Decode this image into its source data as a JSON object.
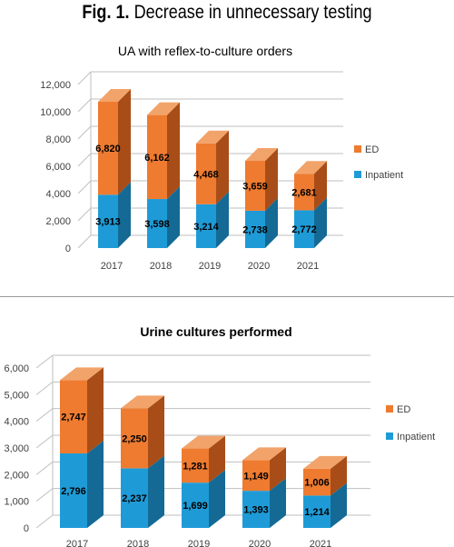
{
  "figure": {
    "prefix": "Fig. 1.",
    "title": "Decrease in unnecessary testing"
  },
  "colors": {
    "inpatient": "#1e9bd7",
    "inpatient_side": "#146a95",
    "inpatient_top": "#6cc0ea",
    "ed": "#ee7b30",
    "ed_side": "#a84d18",
    "ed_top": "#f2a36a",
    "grid": "#bfbfbf",
    "axis_text": "#404040"
  },
  "chart_data": [
    {
      "type": "bar",
      "stacked": true,
      "three_d": true,
      "title": "UA with reflex-to-culture orders",
      "categories": [
        "2017",
        "2018",
        "2019",
        "2020",
        "2021"
      ],
      "series": [
        {
          "name": "Inpatient",
          "values": [
            3913,
            3598,
            3214,
            2738,
            2772
          ],
          "labels": [
            "3,913",
            "3,598",
            "3,214",
            "2,738",
            "2,772"
          ]
        },
        {
          "name": "ED",
          "values": [
            6820,
            6162,
            4468,
            3659,
            2681
          ],
          "labels": [
            "6,820",
            "6,162",
            "4,468",
            "3,659",
            "2,681"
          ]
        }
      ],
      "ylim": [
        0,
        12000
      ],
      "yticks": [
        "0",
        "2,000",
        "4,000",
        "6,000",
        "8,000",
        "10,000",
        "12,000"
      ],
      "legend": [
        "ED",
        "Inpatient"
      ],
      "legend_position": "right",
      "grid": true
    },
    {
      "type": "bar",
      "stacked": true,
      "three_d": true,
      "title": "Urine cultures performed",
      "categories": [
        "2017",
        "2018",
        "2019",
        "2020",
        "2021"
      ],
      "series": [
        {
          "name": "Inpatient",
          "values": [
            2796,
            2237,
            1699,
            1393,
            1214
          ],
          "labels": [
            "2,796",
            "2,237",
            "1,699",
            "1,393",
            "1,214"
          ]
        },
        {
          "name": "ED",
          "values": [
            2747,
            2250,
            1281,
            1149,
            1006
          ],
          "labels": [
            "2,747",
            "2,250",
            "1,281",
            "1,149",
            "1,006"
          ]
        }
      ],
      "ylim": [
        0,
        6000
      ],
      "yticks": [
        "0",
        "1,000",
        "2,000",
        "3,000",
        "4,000",
        "5,000",
        "6,000"
      ],
      "legend": [
        "ED",
        "Inpatient"
      ],
      "legend_position": "right",
      "grid": true
    }
  ]
}
